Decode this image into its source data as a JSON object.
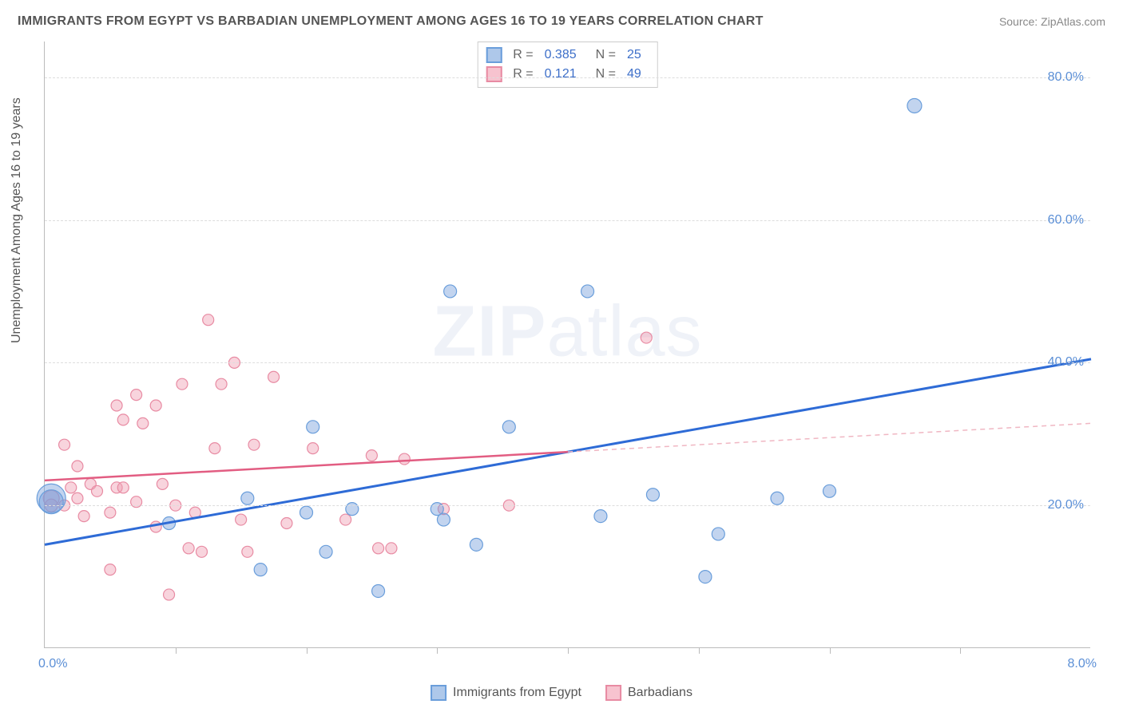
{
  "title": "IMMIGRANTS FROM EGYPT VS BARBADIAN UNEMPLOYMENT AMONG AGES 16 TO 19 YEARS CORRELATION CHART",
  "source_prefix": "Source: ",
  "source_name": "ZipAtlas.com",
  "y_axis_label": "Unemployment Among Ages 16 to 19 years",
  "watermark": {
    "bold": "ZIP",
    "rest": "atlas"
  },
  "chart": {
    "type": "scatter",
    "background_color": "#ffffff",
    "grid_color": "#dddddd",
    "axis_color": "#bbbbbb",
    "xlim": [
      0.0,
      8.0
    ],
    "ylim": [
      0.0,
      85.0
    ],
    "y_ticks": [
      20.0,
      40.0,
      60.0,
      80.0
    ],
    "y_tick_labels": [
      "20.0%",
      "40.0%",
      "60.0%",
      "80.0%"
    ],
    "x_minor_ticks": [
      1.0,
      2.0,
      3.0,
      4.0,
      5.0,
      6.0,
      7.0
    ],
    "x_tick_labels": [
      {
        "x": 0.0,
        "label": "0.0%"
      },
      {
        "x": 8.0,
        "label": "8.0%"
      }
    ],
    "tick_label_color": "#5b8fd6",
    "tick_label_fontsize": 16,
    "series": [
      {
        "name": "Immigrants from Egypt",
        "color_fill": "rgba(120,160,220,0.45)",
        "color_stroke": "#6a9edb",
        "swatch_fill": "#aec8ea",
        "swatch_border": "#6a9edb",
        "stats": {
          "R": "0.385",
          "N": "25"
        },
        "points": [
          {
            "x": 0.05,
            "y": 21.0,
            "r": 18
          },
          {
            "x": 0.05,
            "y": 20.5,
            "r": 15
          },
          {
            "x": 0.95,
            "y": 17.5,
            "r": 8
          },
          {
            "x": 1.55,
            "y": 21.0,
            "r": 8
          },
          {
            "x": 1.65,
            "y": 11.0,
            "r": 8
          },
          {
            "x": 2.0,
            "y": 19.0,
            "r": 8
          },
          {
            "x": 2.05,
            "y": 31.0,
            "r": 8
          },
          {
            "x": 2.15,
            "y": 13.5,
            "r": 8
          },
          {
            "x": 2.35,
            "y": 19.5,
            "r": 8
          },
          {
            "x": 2.55,
            "y": 8.0,
            "r": 8
          },
          {
            "x": 3.0,
            "y": 19.5,
            "r": 8
          },
          {
            "x": 3.05,
            "y": 18.0,
            "r": 8
          },
          {
            "x": 3.1,
            "y": 50.0,
            "r": 8
          },
          {
            "x": 3.3,
            "y": 14.5,
            "r": 8
          },
          {
            "x": 3.55,
            "y": 31.0,
            "r": 8
          },
          {
            "x": 4.15,
            "y": 50.0,
            "r": 8
          },
          {
            "x": 4.25,
            "y": 18.5,
            "r": 8
          },
          {
            "x": 4.65,
            "y": 21.5,
            "r": 8
          },
          {
            "x": 5.05,
            "y": 10.0,
            "r": 8
          },
          {
            "x": 5.15,
            "y": 16.0,
            "r": 8
          },
          {
            "x": 5.6,
            "y": 21.0,
            "r": 8
          },
          {
            "x": 6.0,
            "y": 22.0,
            "r": 8
          },
          {
            "x": 6.65,
            "y": 76.0,
            "r": 9
          }
        ],
        "trend": {
          "x1": 0.0,
          "y1": 14.5,
          "x2": 8.0,
          "y2": 40.5,
          "color": "#2e6bd6",
          "width": 3,
          "dash": "none"
        }
      },
      {
        "name": "Barbadians",
        "color_fill": "rgba(240,160,180,0.45)",
        "color_stroke": "#e88ba3",
        "swatch_fill": "#f7c3cf",
        "swatch_border": "#e88ba3",
        "stats": {
          "R": "0.121",
          "N": "49"
        },
        "points": [
          {
            "x": 0.05,
            "y": 21.0,
            "r": 10
          },
          {
            "x": 0.05,
            "y": 20.0,
            "r": 8
          },
          {
            "x": 0.15,
            "y": 28.5,
            "r": 7
          },
          {
            "x": 0.15,
            "y": 20.0,
            "r": 7
          },
          {
            "x": 0.2,
            "y": 22.5,
            "r": 7
          },
          {
            "x": 0.25,
            "y": 25.5,
            "r": 7
          },
          {
            "x": 0.25,
            "y": 21.0,
            "r": 7
          },
          {
            "x": 0.3,
            "y": 18.5,
            "r": 7
          },
          {
            "x": 0.35,
            "y": 23.0,
            "r": 7
          },
          {
            "x": 0.4,
            "y": 22.0,
            "r": 7
          },
          {
            "x": 0.5,
            "y": 11.0,
            "r": 7
          },
          {
            "x": 0.5,
            "y": 19.0,
            "r": 7
          },
          {
            "x": 0.55,
            "y": 22.5,
            "r": 7
          },
          {
            "x": 0.55,
            "y": 34.0,
            "r": 7
          },
          {
            "x": 0.6,
            "y": 22.5,
            "r": 7
          },
          {
            "x": 0.6,
            "y": 32.0,
            "r": 7
          },
          {
            "x": 0.7,
            "y": 35.5,
            "r": 7
          },
          {
            "x": 0.7,
            "y": 20.5,
            "r": 7
          },
          {
            "x": 0.75,
            "y": 31.5,
            "r": 7
          },
          {
            "x": 0.85,
            "y": 17.0,
            "r": 7
          },
          {
            "x": 0.85,
            "y": 34.0,
            "r": 7
          },
          {
            "x": 0.9,
            "y": 23.0,
            "r": 7
          },
          {
            "x": 0.95,
            "y": 7.5,
            "r": 7
          },
          {
            "x": 1.0,
            "y": 20.0,
            "r": 7
          },
          {
            "x": 1.05,
            "y": 37.0,
            "r": 7
          },
          {
            "x": 1.1,
            "y": 14.0,
            "r": 7
          },
          {
            "x": 1.15,
            "y": 19.0,
            "r": 7
          },
          {
            "x": 1.2,
            "y": 13.5,
            "r": 7
          },
          {
            "x": 1.25,
            "y": 46.0,
            "r": 7
          },
          {
            "x": 1.3,
            "y": 28.0,
            "r": 7
          },
          {
            "x": 1.35,
            "y": 37.0,
            "r": 7
          },
          {
            "x": 1.45,
            "y": 40.0,
            "r": 7
          },
          {
            "x": 1.5,
            "y": 18.0,
            "r": 7
          },
          {
            "x": 1.55,
            "y": 13.5,
            "r": 7
          },
          {
            "x": 1.6,
            "y": 28.5,
            "r": 7
          },
          {
            "x": 1.75,
            "y": 38.0,
            "r": 7
          },
          {
            "x": 1.85,
            "y": 17.5,
            "r": 7
          },
          {
            "x": 2.05,
            "y": 28.0,
            "r": 7
          },
          {
            "x": 2.3,
            "y": 18.0,
            "r": 7
          },
          {
            "x": 2.5,
            "y": 27.0,
            "r": 7
          },
          {
            "x": 2.55,
            "y": 14.0,
            "r": 7
          },
          {
            "x": 2.65,
            "y": 14.0,
            "r": 7
          },
          {
            "x": 2.75,
            "y": 26.5,
            "r": 7
          },
          {
            "x": 3.05,
            "y": 19.5,
            "r": 7
          },
          {
            "x": 3.55,
            "y": 20.0,
            "r": 7
          },
          {
            "x": 4.6,
            "y": 43.5,
            "r": 7
          }
        ],
        "trend_solid": {
          "x1": 0.0,
          "y1": 23.5,
          "x2": 4.0,
          "y2": 27.5,
          "color": "#e25d82",
          "width": 2.5
        },
        "trend_dash": {
          "x1": 4.0,
          "y1": 27.5,
          "x2": 8.0,
          "y2": 31.5,
          "color": "#f0b7c3",
          "width": 1.5,
          "dash": "6,5"
        }
      }
    ]
  },
  "legend_bottom": [
    {
      "label": "Immigrants from Egypt",
      "fill": "#aec8ea",
      "border": "#6a9edb"
    },
    {
      "label": "Barbadians",
      "fill": "#f7c3cf",
      "border": "#e88ba3"
    }
  ]
}
